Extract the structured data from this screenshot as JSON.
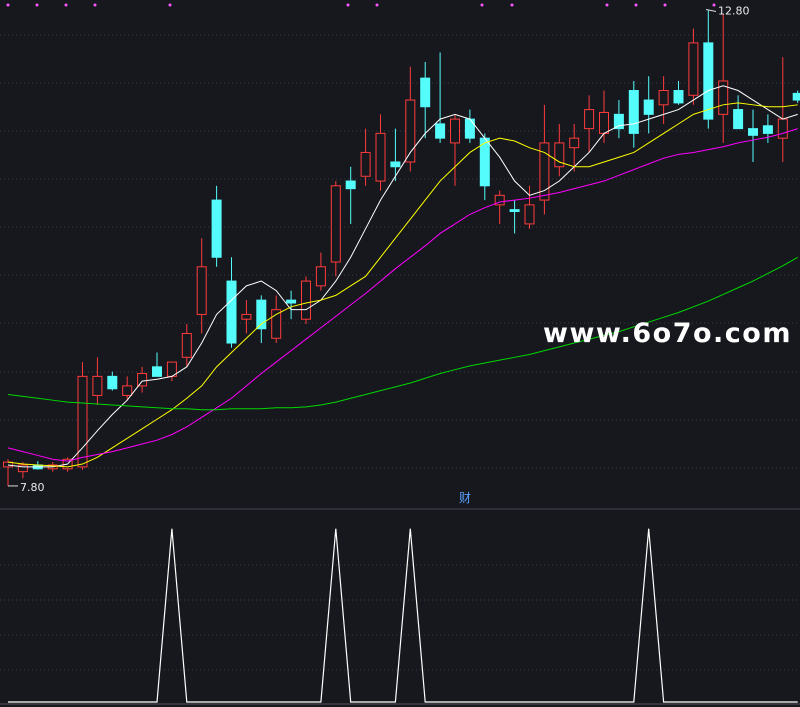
{
  "chart_data": [
    {
      "type": "candlestick",
      "ylim": [
        7.6,
        12.9
      ],
      "up_color": "#ff3b3b",
      "down_color": "#54fcfc",
      "open": [
        8.0,
        7.95,
        8.02,
        7.98,
        7.98,
        8.0,
        8.75,
        8.95,
        8.75,
        8.85,
        9.05,
        8.95,
        9.15,
        9.6,
        10.8,
        9.95,
        9.55,
        9.75,
        9.35,
        9.75,
        9.55,
        9.9,
        10.15,
        11.0,
        11.05,
        11.0,
        11.2,
        11.2,
        12.08,
        11.6,
        11.4,
        11.65,
        11.45,
        10.75,
        10.7,
        10.55,
        10.8,
        11.15,
        11.35,
        11.55,
        11.5,
        11.7,
        11.95,
        11.85,
        11.8,
        11.95,
        11.9,
        12.45,
        11.7,
        11.75,
        11.55,
        11.58,
        11.45,
        11.92
      ],
      "high": [
        8.08,
        8.05,
        8.06,
        8.05,
        8.1,
        9.1,
        9.15,
        9.0,
        8.95,
        9.05,
        9.2,
        9.1,
        9.5,
        10.4,
        10.95,
        10.2,
        9.75,
        9.8,
        9.8,
        9.85,
        10.0,
        10.25,
        11.0,
        11.15,
        11.55,
        11.7,
        11.55,
        12.2,
        12.25,
        12.35,
        11.7,
        11.75,
        11.5,
        10.9,
        10.8,
        10.95,
        11.8,
        11.6,
        11.6,
        11.9,
        11.95,
        11.85,
        12.05,
        12.1,
        12.1,
        12.05,
        12.6,
        12.8,
        12.75,
        11.9,
        11.75,
        11.7,
        12.3,
        11.95
      ],
      "low": [
        7.8,
        7.88,
        7.97,
        7.95,
        7.95,
        7.97,
        8.65,
        8.8,
        8.7,
        8.78,
        8.95,
        8.9,
        9.05,
        9.4,
        10.1,
        9.25,
        9.4,
        9.3,
        9.3,
        9.55,
        9.5,
        9.85,
        10.0,
        10.55,
        10.95,
        10.9,
        11.0,
        11.1,
        11.45,
        11.4,
        10.95,
        11.4,
        10.8,
        10.55,
        10.45,
        10.5,
        10.65,
        11.05,
        11.1,
        11.3,
        11.4,
        11.45,
        11.35,
        11.5,
        11.6,
        11.8,
        11.8,
        11.55,
        11.4,
        11.55,
        11.2,
        11.4,
        11.2,
        11.82
      ],
      "close": [
        8.05,
        8.02,
        7.98,
        8.02,
        8.08,
        8.95,
        8.95,
        8.82,
        8.85,
        8.98,
        8.95,
        9.1,
        9.4,
        10.1,
        10.2,
        9.3,
        9.6,
        9.45,
        9.65,
        9.72,
        9.95,
        10.1,
        10.95,
        10.92,
        11.3,
        11.5,
        11.15,
        11.85,
        11.78,
        11.45,
        11.65,
        11.45,
        10.95,
        10.85,
        10.68,
        10.75,
        11.4,
        11.4,
        11.45,
        11.75,
        11.72,
        11.55,
        11.5,
        11.7,
        11.95,
        11.82,
        12.45,
        11.65,
        12.05,
        11.55,
        11.48,
        11.5,
        11.65,
        11.85
      ],
      "lines": [
        {
          "color": "#ffffff",
          "values": [
            8.02,
            8.0,
            8.0,
            8.0,
            8.03,
            8.2,
            8.38,
            8.55,
            8.7,
            8.9,
            8.92,
            8.95,
            9.05,
            9.3,
            9.6,
            9.75,
            9.9,
            9.95,
            9.85,
            9.65,
            9.65,
            9.75,
            9.95,
            10.2,
            10.5,
            10.8,
            11.05,
            11.3,
            11.5,
            11.65,
            11.7,
            11.65,
            11.45,
            11.25,
            11.0,
            10.85,
            10.9,
            11.0,
            11.15,
            11.3,
            11.5,
            11.58,
            11.6,
            11.65,
            11.7,
            11.75,
            11.85,
            11.95,
            12.0,
            11.95,
            11.85,
            11.75,
            11.65,
            11.7
          ]
        },
        {
          "color": "#ffff00",
          "values": [
            8.05,
            8.03,
            8.02,
            8.01,
            8.0,
            8.03,
            8.1,
            8.2,
            8.3,
            8.4,
            8.5,
            8.6,
            8.72,
            8.85,
            9.05,
            9.2,
            9.35,
            9.5,
            9.6,
            9.68,
            9.72,
            9.75,
            9.8,
            9.9,
            10.0,
            10.2,
            10.4,
            10.6,
            10.8,
            11.0,
            11.15,
            11.3,
            11.4,
            11.45,
            11.42,
            11.35,
            11.3,
            11.2,
            11.15,
            11.15,
            11.2,
            11.25,
            11.3,
            11.4,
            11.5,
            11.6,
            11.7,
            11.75,
            11.8,
            11.82,
            11.8,
            11.78,
            11.78,
            11.8
          ]
        },
        {
          "color": "#ff00ff",
          "values": [
            8.2,
            8.16,
            8.12,
            8.08,
            8.06,
            8.1,
            8.13,
            8.16,
            8.2,
            8.24,
            8.28,
            8.34,
            8.42,
            8.52,
            8.62,
            8.72,
            8.85,
            8.98,
            9.1,
            9.22,
            9.34,
            9.46,
            9.58,
            9.7,
            9.82,
            9.95,
            10.08,
            10.2,
            10.32,
            10.45,
            10.55,
            10.65,
            10.72,
            10.78,
            10.8,
            10.82,
            10.85,
            10.88,
            10.92,
            10.96,
            11.0,
            11.06,
            11.12,
            11.18,
            11.24,
            11.28,
            11.3,
            11.33,
            11.36,
            11.4,
            11.43,
            11.46,
            11.5,
            11.55
          ]
        },
        {
          "color": "#00d800",
          "values": [
            8.76,
            8.74,
            8.72,
            8.7,
            8.68,
            8.67,
            8.66,
            8.65,
            8.64,
            8.63,
            8.62,
            8.61,
            8.61,
            8.6,
            8.6,
            8.61,
            8.61,
            8.61,
            8.62,
            8.62,
            8.63,
            8.65,
            8.68,
            8.72,
            8.76,
            8.8,
            8.84,
            8.88,
            8.93,
            8.98,
            9.02,
            9.06,
            9.09,
            9.12,
            9.15,
            9.18,
            9.22,
            9.26,
            9.3,
            9.34,
            9.38,
            9.42,
            9.47,
            9.52,
            9.57,
            9.62,
            9.68,
            9.74,
            9.81,
            9.88,
            9.95,
            10.03,
            10.11,
            10.2
          ]
        }
      ],
      "annotations": [
        {
          "value": 12.8,
          "label": "12.80"
        },
        {
          "value": 7.8,
          "label": "7.80"
        }
      ],
      "watermark": "www.6o7o.com"
    },
    {
      "type": "line",
      "title": "财",
      "color": "#ffffff",
      "ylim": [
        0,
        1.05
      ],
      "values": [
        0,
        0,
        0,
        0,
        0,
        0,
        0,
        0,
        0,
        0,
        0,
        1,
        0,
        0,
        0,
        0,
        0,
        0,
        0,
        0,
        0,
        0,
        1,
        0,
        0,
        0,
        0,
        1,
        0,
        0,
        0,
        0,
        0,
        0,
        0,
        0,
        0,
        0,
        0,
        0,
        0,
        0,
        0,
        1,
        0,
        0,
        0,
        0,
        0,
        0,
        0,
        0,
        0,
        0
      ]
    }
  ]
}
